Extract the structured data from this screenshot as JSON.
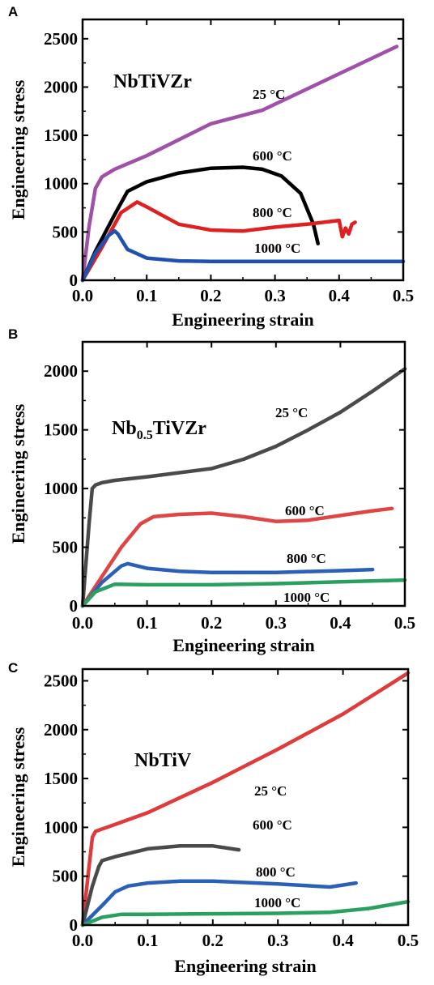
{
  "chart_data": [
    {
      "type": "line",
      "panel_label": "A",
      "title": "NbTiVZr",
      "xlabel": "Engineering strain",
      "ylabel": "Engineering stress",
      "xlim": [
        0,
        0.5
      ],
      "ylim": [
        0,
        2700
      ],
      "xticks": [
        "0.0",
        "0.1",
        "0.2",
        "0.3",
        "0.4",
        "0.5"
      ],
      "yticks": [
        "0",
        "500",
        "1000",
        "1500",
        "2000",
        "2500"
      ],
      "series": [
        {
          "name": "25 °C",
          "color": "#a050a8",
          "x": [
            0,
            0.01,
            0.02,
            0.03,
            0.05,
            0.1,
            0.2,
            0.28,
            0.35,
            0.42,
            0.49
          ],
          "y": [
            0,
            550,
            950,
            1070,
            1150,
            1290,
            1620,
            1760,
            1980,
            2200,
            2420
          ]
        },
        {
          "name": "600 °C",
          "color": "#000000",
          "x": [
            0,
            0.02,
            0.05,
            0.07,
            0.1,
            0.15,
            0.2,
            0.25,
            0.28,
            0.31,
            0.34,
            0.36,
            0.367
          ],
          "y": [
            0,
            300,
            680,
            920,
            1020,
            1110,
            1160,
            1170,
            1150,
            1080,
            900,
            580,
            380
          ]
        },
        {
          "name": "800 °C",
          "color": "#e02020",
          "x": [
            0,
            0.03,
            0.06,
            0.085,
            0.1,
            0.15,
            0.2,
            0.25,
            0.3,
            0.35,
            0.4,
            0.405,
            0.41,
            0.415,
            0.42,
            0.425
          ],
          "y": [
            0,
            340,
            700,
            810,
            760,
            580,
            520,
            510,
            550,
            580,
            620,
            450,
            540,
            480,
            580,
            600
          ]
        },
        {
          "name": "1000 °C",
          "color": "#2050b0",
          "x": [
            0,
            0.02,
            0.04,
            0.05,
            0.055,
            0.07,
            0.1,
            0.15,
            0.2,
            0.3,
            0.4,
            0.5
          ],
          "y": [
            0,
            280,
            460,
            510,
            480,
            320,
            230,
            200,
            195,
            195,
            195,
            195
          ]
        }
      ]
    },
    {
      "type": "line",
      "panel_label": "B",
      "title": "Nb0.5TiVZr",
      "title_main": "Nb",
      "title_sub": "0.5",
      "title_rest": "TiVZr",
      "xlabel": "Engineering strain",
      "ylabel": "Engineering stress",
      "xlim": [
        0,
        0.5
      ],
      "ylim": [
        0,
        2250
      ],
      "xticks": [
        "0.0",
        "0.1",
        "0.2",
        "0.3",
        "0.4",
        "0.5"
      ],
      "yticks": [
        "0",
        "500",
        "1000",
        "1500",
        "2000"
      ],
      "series": [
        {
          "name": "25 °C",
          "color": "#4a4a4a",
          "x": [
            0,
            0.01,
            0.015,
            0.02,
            0.03,
            0.05,
            0.1,
            0.2,
            0.25,
            0.3,
            0.35,
            0.4,
            0.45,
            0.5
          ],
          "y": [
            0,
            700,
            1000,
            1030,
            1050,
            1070,
            1100,
            1170,
            1250,
            1360,
            1500,
            1650,
            1830,
            2020
          ]
        },
        {
          "name": "600 °C",
          "color": "#e04545",
          "x": [
            0,
            0.03,
            0.06,
            0.09,
            0.11,
            0.15,
            0.2,
            0.25,
            0.3,
            0.35,
            0.4,
            0.45,
            0.48
          ],
          "y": [
            0,
            250,
            500,
            700,
            760,
            780,
            790,
            760,
            720,
            730,
            770,
            810,
            830
          ]
        },
        {
          "name": "800 °C",
          "color": "#2a60b8",
          "x": [
            0,
            0.03,
            0.06,
            0.07,
            0.1,
            0.15,
            0.2,
            0.3,
            0.4,
            0.45
          ],
          "y": [
            0,
            200,
            340,
            360,
            320,
            295,
            285,
            285,
            300,
            310
          ]
        },
        {
          "name": "1000 °C",
          "color": "#2aa060",
          "x": [
            0,
            0.02,
            0.05,
            0.1,
            0.2,
            0.3,
            0.4,
            0.5
          ],
          "y": [
            0,
            120,
            185,
            180,
            180,
            190,
            205,
            220
          ]
        }
      ]
    },
    {
      "type": "line",
      "panel_label": "C",
      "title": "NbTiV",
      "xlabel": "Engineering strain",
      "ylabel": "Engineering stress",
      "xlim": [
        0,
        0.5
      ],
      "ylim": [
        0,
        2620
      ],
      "xticks": [
        "0.0",
        "0.1",
        "0.2",
        "0.3",
        "0.4",
        "0.5"
      ],
      "yticks": [
        "0",
        "500",
        "1000",
        "1500",
        "2000",
        "2500"
      ],
      "series": [
        {
          "name": "25 °C",
          "color": "#e03a3a",
          "x": [
            0,
            0.01,
            0.015,
            0.02,
            0.05,
            0.1,
            0.2,
            0.3,
            0.4,
            0.5
          ],
          "y": [
            0,
            600,
            900,
            960,
            1030,
            1150,
            1460,
            1800,
            2160,
            2580
          ]
        },
        {
          "name": "600 °C",
          "color": "#4a4a4a",
          "x": [
            0,
            0.015,
            0.025,
            0.03,
            0.05,
            0.1,
            0.15,
            0.2,
            0.24
          ],
          "y": [
            0,
            400,
            600,
            660,
            700,
            780,
            810,
            810,
            770
          ]
        },
        {
          "name": "800 °C",
          "color": "#2a60b8",
          "x": [
            0,
            0.03,
            0.05,
            0.07,
            0.1,
            0.15,
            0.2,
            0.3,
            0.38,
            0.42
          ],
          "y": [
            0,
            200,
            340,
            400,
            430,
            450,
            450,
            420,
            390,
            430
          ]
        },
        {
          "name": "1000 °C",
          "color": "#2aa060",
          "x": [
            0,
            0.03,
            0.06,
            0.1,
            0.2,
            0.3,
            0.38,
            0.44,
            0.5
          ],
          "y": [
            0,
            80,
            110,
            110,
            115,
            120,
            130,
            170,
            240
          ]
        }
      ]
    }
  ]
}
